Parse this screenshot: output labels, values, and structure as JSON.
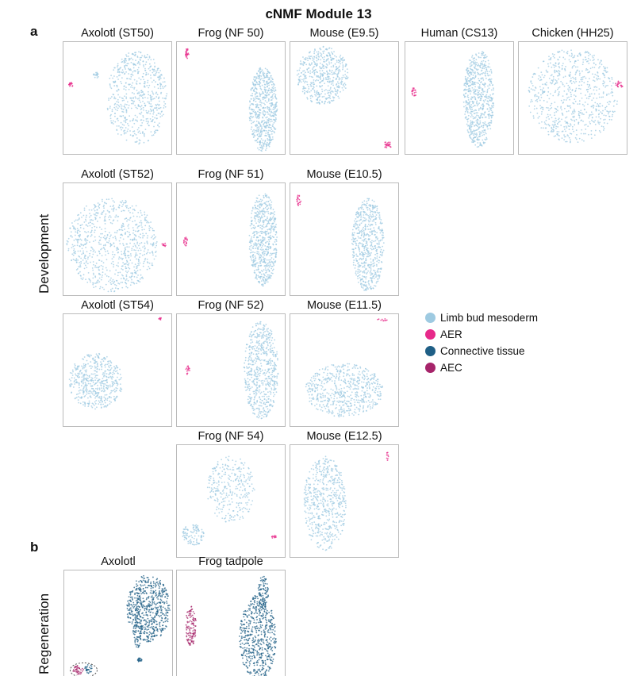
{
  "title": "cNMF Module 13",
  "section_a": {
    "label": "a",
    "row_label": "Development"
  },
  "section_b": {
    "label": "b",
    "row_label": "Regeneration"
  },
  "colors": {
    "limb": "#9ecae1",
    "aer": "#e7298a",
    "ct": "#1f5f86",
    "aec": "#a6246a"
  },
  "panels_a": [
    "Axolotl (ST50)",
    "Frog (NF 50)",
    "Mouse (E9.5)",
    "Human (CS13)",
    "Chicken (HH25)",
    "Axolotl (ST52)",
    "Frog (NF 51)",
    "Mouse (E10.5)",
    "Axolotl (ST54)",
    "Frog (NF 52)",
    "Mouse (E11.5)",
    "Frog (NF 54)",
    "Mouse (E12.5)"
  ],
  "panels_b": [
    "Axolotl",
    "Frog tadpole"
  ],
  "legend": [
    {
      "label": "Limb bud mesoderm",
      "color": "#9ecae1"
    },
    {
      "label": "AER",
      "color": "#e7298a"
    },
    {
      "label": "Connective tissue",
      "color": "#1f5f86"
    },
    {
      "label": "AEC",
      "color": "#a6246a"
    }
  ]
}
